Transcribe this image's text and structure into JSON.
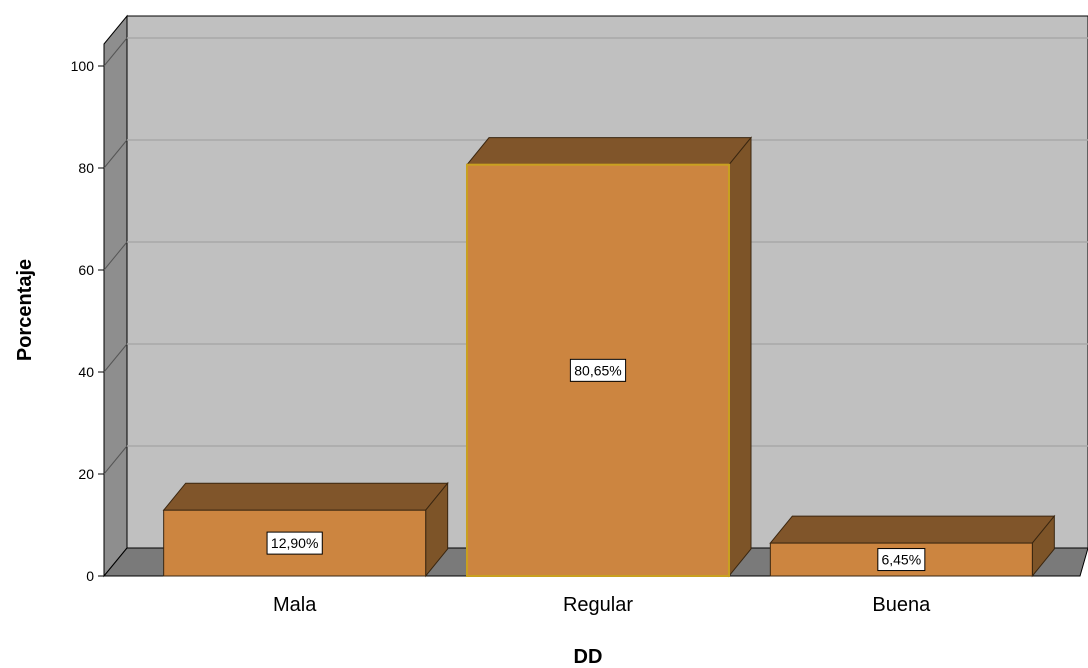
{
  "chart_data": {
    "type": "bar",
    "style": "3d",
    "categories": [
      "Mala",
      "Regular",
      "Buena"
    ],
    "values": [
      12.9,
      80.65,
      6.45
    ],
    "data_labels": [
      "12,90%",
      "80,65%",
      "6,45%"
    ],
    "xlabel": "DD",
    "ylabel": "Porcentaje",
    "ylim": [
      0,
      100
    ],
    "yticks": [
      0,
      20,
      40,
      60,
      80,
      100
    ],
    "grid": true,
    "legend": "none",
    "colors": {
      "bar_front": "#cc8540",
      "bar_side": "#7d5428",
      "bar_top": "#80552a",
      "bar_highlight_border": "#c8a020",
      "plot_back_wall": "#c0c0c0",
      "plot_side_wall": "#8e8e8e",
      "plot_floor": "#7a7a7a",
      "gridline": "#a8a8a8"
    }
  }
}
